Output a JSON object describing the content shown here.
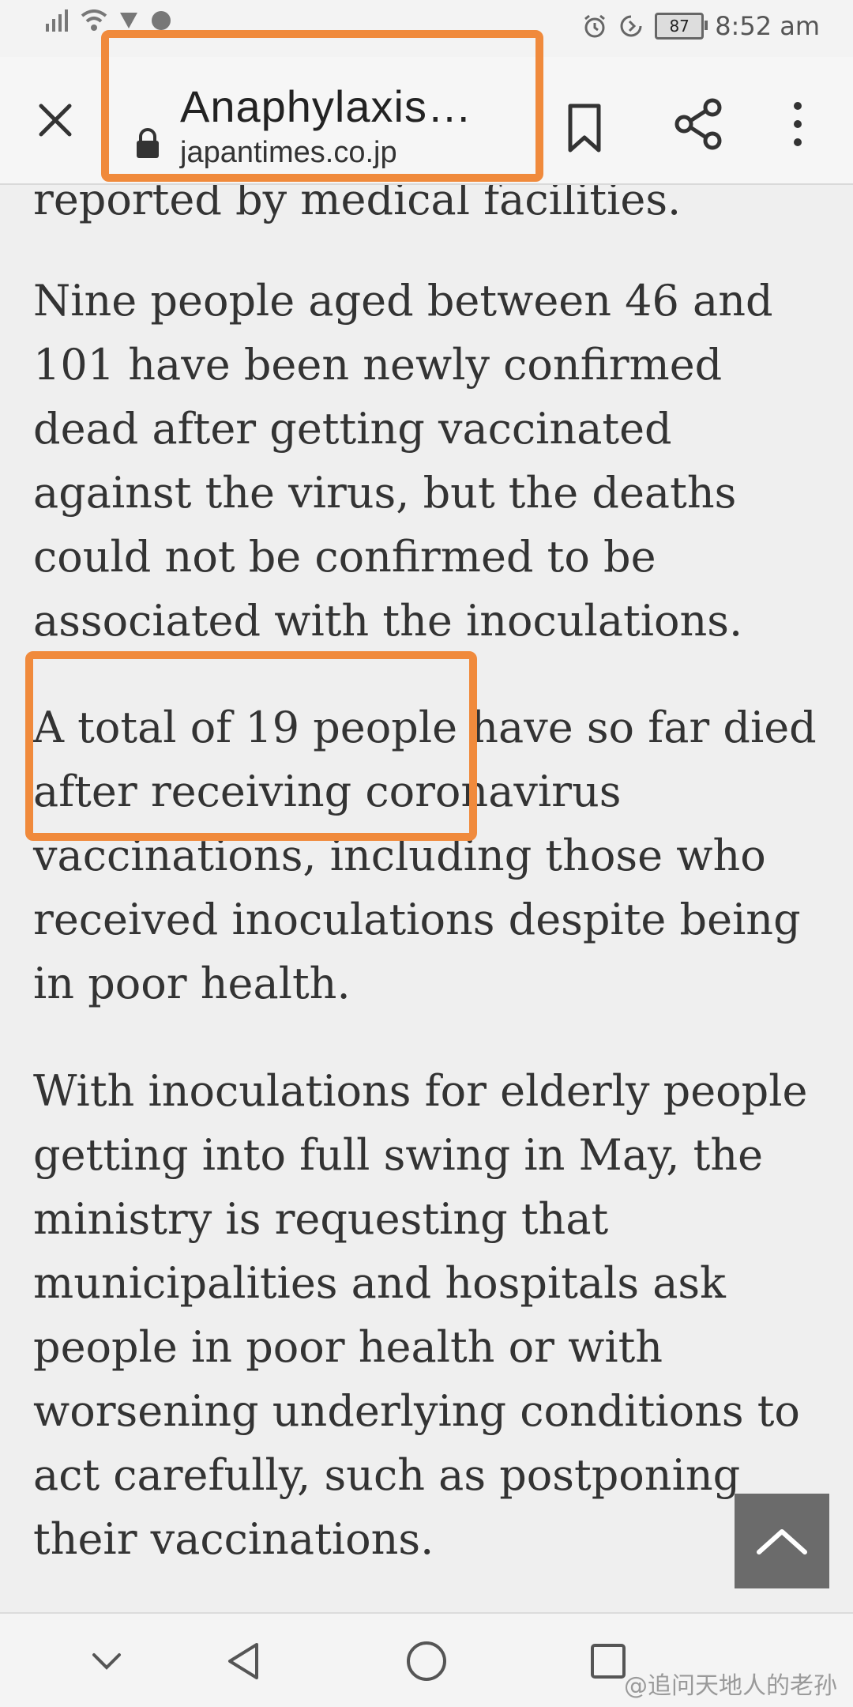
{
  "status_bar": {
    "time": "8:52 am",
    "battery": "87",
    "left_icons": [
      "signal-icon",
      "wifi-icon",
      "notification-icon",
      "app-icon"
    ],
    "right_icons": [
      "alarm-icon",
      "data-saver-icon",
      "battery-icon"
    ]
  },
  "toolbar": {
    "page_title": "Anaphylaxis…",
    "domain": "japantimes.co.jp",
    "icons": [
      "close-icon",
      "lock-icon",
      "bookmark-icon",
      "share-icon",
      "more-vert-icon"
    ]
  },
  "article": {
    "paragraphs": [
      "reported by medical facilities.",
      "Nine people aged between 46 and 101 have been newly confirmed dead after getting vaccinated against the virus, but the deaths could not be confirmed to be associated with the inoculations.",
      "A total of 19 people have so far died after receiving coronavirus vaccinations, including those who received inoculations despite being in poor health.",
      "With inoculations for elderly people getting into full swing in May, the ministry is requesting that municipalities and hospitals ask people in poor health or with worsening underlying conditions to act carefully, such as postponing their vaccinations."
    ]
  },
  "nav_bar": {
    "icons": [
      "chevron-down-icon",
      "back-icon",
      "home-icon",
      "recents-icon"
    ],
    "watermark": "@追问天地人的老孙"
  },
  "colors": {
    "highlight": "#f08a3c",
    "background": "#efefef",
    "text": "#333333"
  }
}
